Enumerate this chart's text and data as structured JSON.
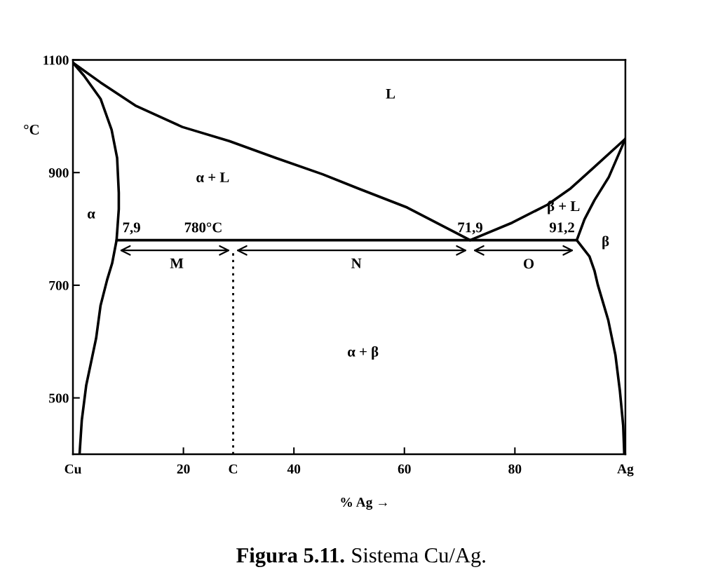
{
  "chart_data": {
    "type": "line",
    "title": "Figura 5.11.",
    "subtitle": "Sistema Cu/Ag.",
    "xlabel": "% Ag →",
    "ylabel": "°C",
    "xlim": [
      0,
      100
    ],
    "ylim": [
      400,
      1100
    ],
    "xticks": [
      {
        "value": 0,
        "label": "Cu"
      },
      20,
      40,
      60,
      80,
      {
        "value": 100,
        "label": "Ag"
      }
    ],
    "yticks": [
      500,
      700,
      900,
      1100
    ],
    "line_style": "solid",
    "marker": "none",
    "series": [
      {
        "color": "#000000",
        "x": [
          0,
          5,
          11.3,
          19.8,
          28.3,
          36.7,
          45.2,
          51.6,
          60.5,
          71.9,
          79.5,
          85.9,
          90.1,
          94.4,
          100
        ],
        "values": [
          1095,
          1060,
          1019,
          981,
          956,
          926,
          897,
          872,
          838,
          780,
          811,
          843,
          872,
          910,
          960
        ]
      },
      {
        "color": "#000000",
        "x": [
          0,
          2,
          5,
          7,
          8,
          8.3,
          8.3,
          7.9,
          7.1,
          6.2,
          5.0,
          4.2,
          2.4,
          1.6,
          1.2
        ],
        "values": [
          1095,
          1072,
          1031,
          976,
          926,
          864,
          835,
          780,
          739,
          710,
          664,
          606,
          522,
          460,
          400
        ]
      },
      {
        "color": "#000000",
        "x": [
          100,
          97,
          94.4,
          92.6,
          91.2,
          93.5,
          94.4,
          95,
          96.9,
          98.2,
          99,
          99.6,
          99.8
        ],
        "values": [
          960,
          892,
          851,
          817,
          780,
          751,
          726,
          701,
          638,
          576,
          513,
          451,
          400
        ]
      },
      {
        "color": "#000000",
        "x": [
          7.9,
          29,
          71.9,
          91.2
        ],
        "values": [
          780,
          780,
          780,
          780
        ]
      }
    ],
    "ref_lines": [
      {
        "axis": "x",
        "value": 29,
        "label": "C",
        "color": "#000000",
        "line_style": "dotted"
      }
    ],
    "annotations": [
      "L",
      "α + L",
      "α",
      {
        "text": "7,9",
        "x": 7.9,
        "y": 780
      },
      {
        "text": "780°C",
        "x": 23.6,
        "y": 780
      },
      {
        "text": "71,9",
        "x": 71.9,
        "y": 780
      },
      {
        "text": "91,2",
        "x": 91.2,
        "y": 780
      },
      "β + L",
      "β",
      "M",
      "N",
      "O",
      "α + β"
    ]
  }
}
